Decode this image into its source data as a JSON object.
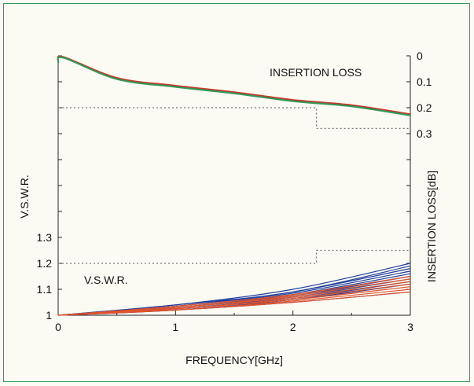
{
  "chart_data": {
    "type": "line",
    "title": "",
    "xlabel": "FREQUENCY[GHz]",
    "ylabel_left": "V.S.W.R.",
    "ylabel_right": "INSERTION LOSS[dB]",
    "xlim": [
      0,
      3
    ],
    "x_ticks": [
      "0",
      "1",
      "2",
      "3"
    ],
    "ylim_left": [
      1.0,
      2.0
    ],
    "y_ticks_left": [
      "1",
      "1.1",
      "1.2",
      "1.3"
    ],
    "ylim_right": [
      0,
      1.0
    ],
    "y_ticks_right": [
      "0",
      "0.1",
      "0.2",
      "0.3"
    ],
    "grid": false,
    "annotations": {
      "insertion_loss": "INSERTION LOSS",
      "vswr": "V.S.W.R."
    },
    "limit_lines": {
      "insertion_loss_spec": [
        [
          0,
          0.2
        ],
        [
          2.2,
          0.2
        ],
        [
          2.2,
          0.28
        ],
        [
          3,
          0.28
        ]
      ],
      "vswr_spec": [
        [
          0,
          1.2
        ],
        [
          2.2,
          1.2
        ],
        [
          2.2,
          1.25
        ],
        [
          3,
          1.25
        ]
      ]
    },
    "series": [
      {
        "group": "insertion_loss",
        "color": "#c0392b",
        "x": [
          0,
          0.05,
          0.5,
          1.0,
          1.5,
          2.0,
          2.5,
          3.0
        ],
        "y": [
          0.02,
          0.005,
          0.085,
          0.115,
          0.14,
          0.17,
          0.19,
          0.225
        ]
      },
      {
        "group": "insertion_loss",
        "color": "#2e9a5a",
        "x": [
          0,
          0.05,
          0.5,
          1.0,
          1.5,
          2.0,
          2.5,
          3.0
        ],
        "y": [
          0.025,
          0.008,
          0.09,
          0.12,
          0.145,
          0.175,
          0.195,
          0.23
        ]
      },
      {
        "group": "vswr",
        "color": "#1f3f9e",
        "x": [
          0,
          1,
          2,
          3
        ],
        "y": [
          1.0,
          1.04,
          1.1,
          1.2
        ]
      },
      {
        "group": "vswr",
        "color": "#1f3f9e",
        "x": [
          0,
          1,
          2,
          3
        ],
        "y": [
          1.0,
          1.04,
          1.09,
          1.19
        ]
      },
      {
        "group": "vswr",
        "color": "#1f3f9e",
        "x": [
          0,
          1,
          2,
          3
        ],
        "y": [
          1.0,
          1.035,
          1.09,
          1.18
        ]
      },
      {
        "group": "vswr",
        "color": "#1f3f9e",
        "x": [
          0,
          1,
          2,
          3
        ],
        "y": [
          1.0,
          1.035,
          1.085,
          1.17
        ]
      },
      {
        "group": "vswr",
        "color": "#1f3f9e",
        "x": [
          0,
          1,
          2,
          3
        ],
        "y": [
          1.0,
          1.03,
          1.08,
          1.16
        ]
      },
      {
        "group": "vswr",
        "color": "#1f3f9e",
        "x": [
          0,
          1,
          2,
          3
        ],
        "y": [
          1.0,
          1.03,
          1.075,
          1.15
        ]
      },
      {
        "group": "vswr",
        "color": "#1f3f9e",
        "x": [
          0,
          1,
          2,
          3
        ],
        "y": [
          1.0,
          1.025,
          1.07,
          1.14
        ]
      },
      {
        "group": "vswr",
        "color": "#1f3f9e",
        "x": [
          0,
          1,
          2,
          3
        ],
        "y": [
          1.0,
          1.025,
          1.065,
          1.13
        ]
      },
      {
        "group": "vswr",
        "color": "#1f3f9e",
        "x": [
          0,
          1,
          2,
          3
        ],
        "y": [
          1.0,
          1.02,
          1.06,
          1.12
        ]
      },
      {
        "group": "vswr",
        "color": "#1f3f9e",
        "x": [
          0,
          1,
          2,
          3
        ],
        "y": [
          1.0,
          1.02,
          1.05,
          1.09
        ]
      },
      {
        "group": "vswr",
        "color": "#e0532c",
        "x": [
          0,
          1,
          2,
          3
        ],
        "y": [
          1.0,
          1.035,
          1.08,
          1.15
        ]
      },
      {
        "group": "vswr",
        "color": "#e0532c",
        "x": [
          0,
          1,
          2,
          3
        ],
        "y": [
          1.0,
          1.03,
          1.075,
          1.14
        ]
      },
      {
        "group": "vswr",
        "color": "#e0532c",
        "x": [
          0,
          1,
          2,
          3
        ],
        "y": [
          1.0,
          1.03,
          1.07,
          1.13
        ]
      },
      {
        "group": "vswr",
        "color": "#e0532c",
        "x": [
          0,
          1,
          2,
          3
        ],
        "y": [
          1.0,
          1.025,
          1.065,
          1.12
        ]
      },
      {
        "group": "vswr",
        "color": "#e0532c",
        "x": [
          0,
          1,
          2,
          3
        ],
        "y": [
          1.0,
          1.025,
          1.06,
          1.11
        ]
      },
      {
        "group": "vswr",
        "color": "#e0532c",
        "x": [
          0,
          1,
          2,
          3
        ],
        "y": [
          1.0,
          1.02,
          1.055,
          1.1
        ]
      },
      {
        "group": "vswr",
        "color": "#e0532c",
        "x": [
          0,
          1,
          2,
          3
        ],
        "y": [
          1.0,
          1.02,
          1.05,
          1.09
        ]
      }
    ]
  }
}
